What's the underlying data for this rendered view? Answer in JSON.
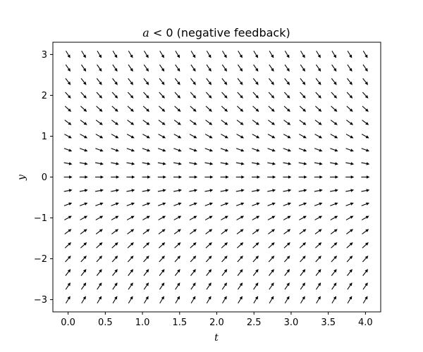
{
  "chart_data": {
    "type": "quiver",
    "title_italic": "a",
    "title_rest": " < 0 (negative feedback)",
    "xlabel": "t",
    "ylabel": "y",
    "xlim": [
      -0.205,
      4.205
    ],
    "ylim": [
      -3.3,
      3.3
    ],
    "x_ticks": [
      0.0,
      0.5,
      1.0,
      1.5,
      2.0,
      2.5,
      3.0,
      3.5,
      4.0
    ],
    "x_tick_labels": [
      "0.0",
      "0.5",
      "1.0",
      "1.5",
      "2.0",
      "2.5",
      "3.0",
      "3.5",
      "4.0"
    ],
    "y_ticks": [
      -3,
      -2,
      -1,
      0,
      1,
      2,
      3
    ],
    "y_tick_labels": [
      "−3",
      "−2",
      "−1",
      "0",
      "1",
      "2",
      "3"
    ],
    "field": {
      "equation": "dy/dt = a*y",
      "a": -1,
      "t_values": [
        0.0,
        0.2105,
        0.4211,
        0.6316,
        0.8421,
        1.0526,
        1.2632,
        1.4737,
        1.6842,
        1.8947,
        2.1053,
        2.3158,
        2.5263,
        2.7368,
        2.9474,
        3.1579,
        3.3684,
        3.5789,
        3.7895,
        4.0
      ],
      "y_values": [
        -3.0,
        -2.6667,
        -2.3333,
        -2.0,
        -1.6667,
        -1.3333,
        -1.0,
        -0.6667,
        -0.3333,
        0.0,
        0.3333,
        0.6667,
        1.0,
        1.3333,
        1.6667,
        2.0,
        2.3333,
        2.6667,
        3.0
      ],
      "normalized": true
    },
    "grid": false,
    "legend": "none"
  }
}
